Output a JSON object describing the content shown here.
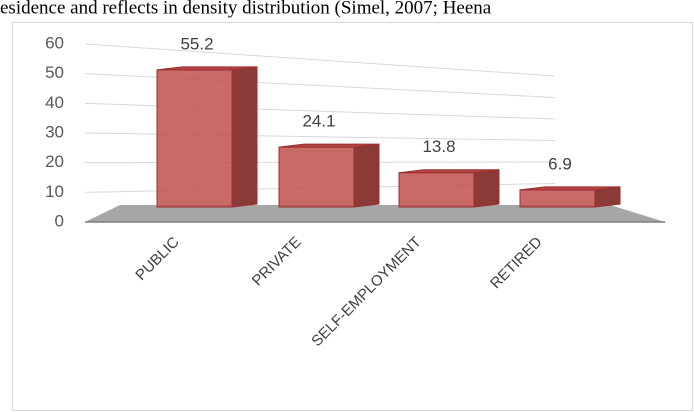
{
  "page_text": "esidence and reflects in density distribution (Simel, 2007; Heena",
  "chart_data": {
    "type": "bar3d",
    "categories": [
      "PUBLIC",
      "PRIVATE",
      "SELF-EMPLOYMENT",
      "RETIRED"
    ],
    "values": [
      55.2,
      24.1,
      13.8,
      6.9
    ],
    "color": "#c0504d",
    "ylim": [
      0,
      60
    ],
    "yticks": [
      0,
      10,
      20,
      30,
      40,
      50,
      60
    ],
    "grid": true
  }
}
